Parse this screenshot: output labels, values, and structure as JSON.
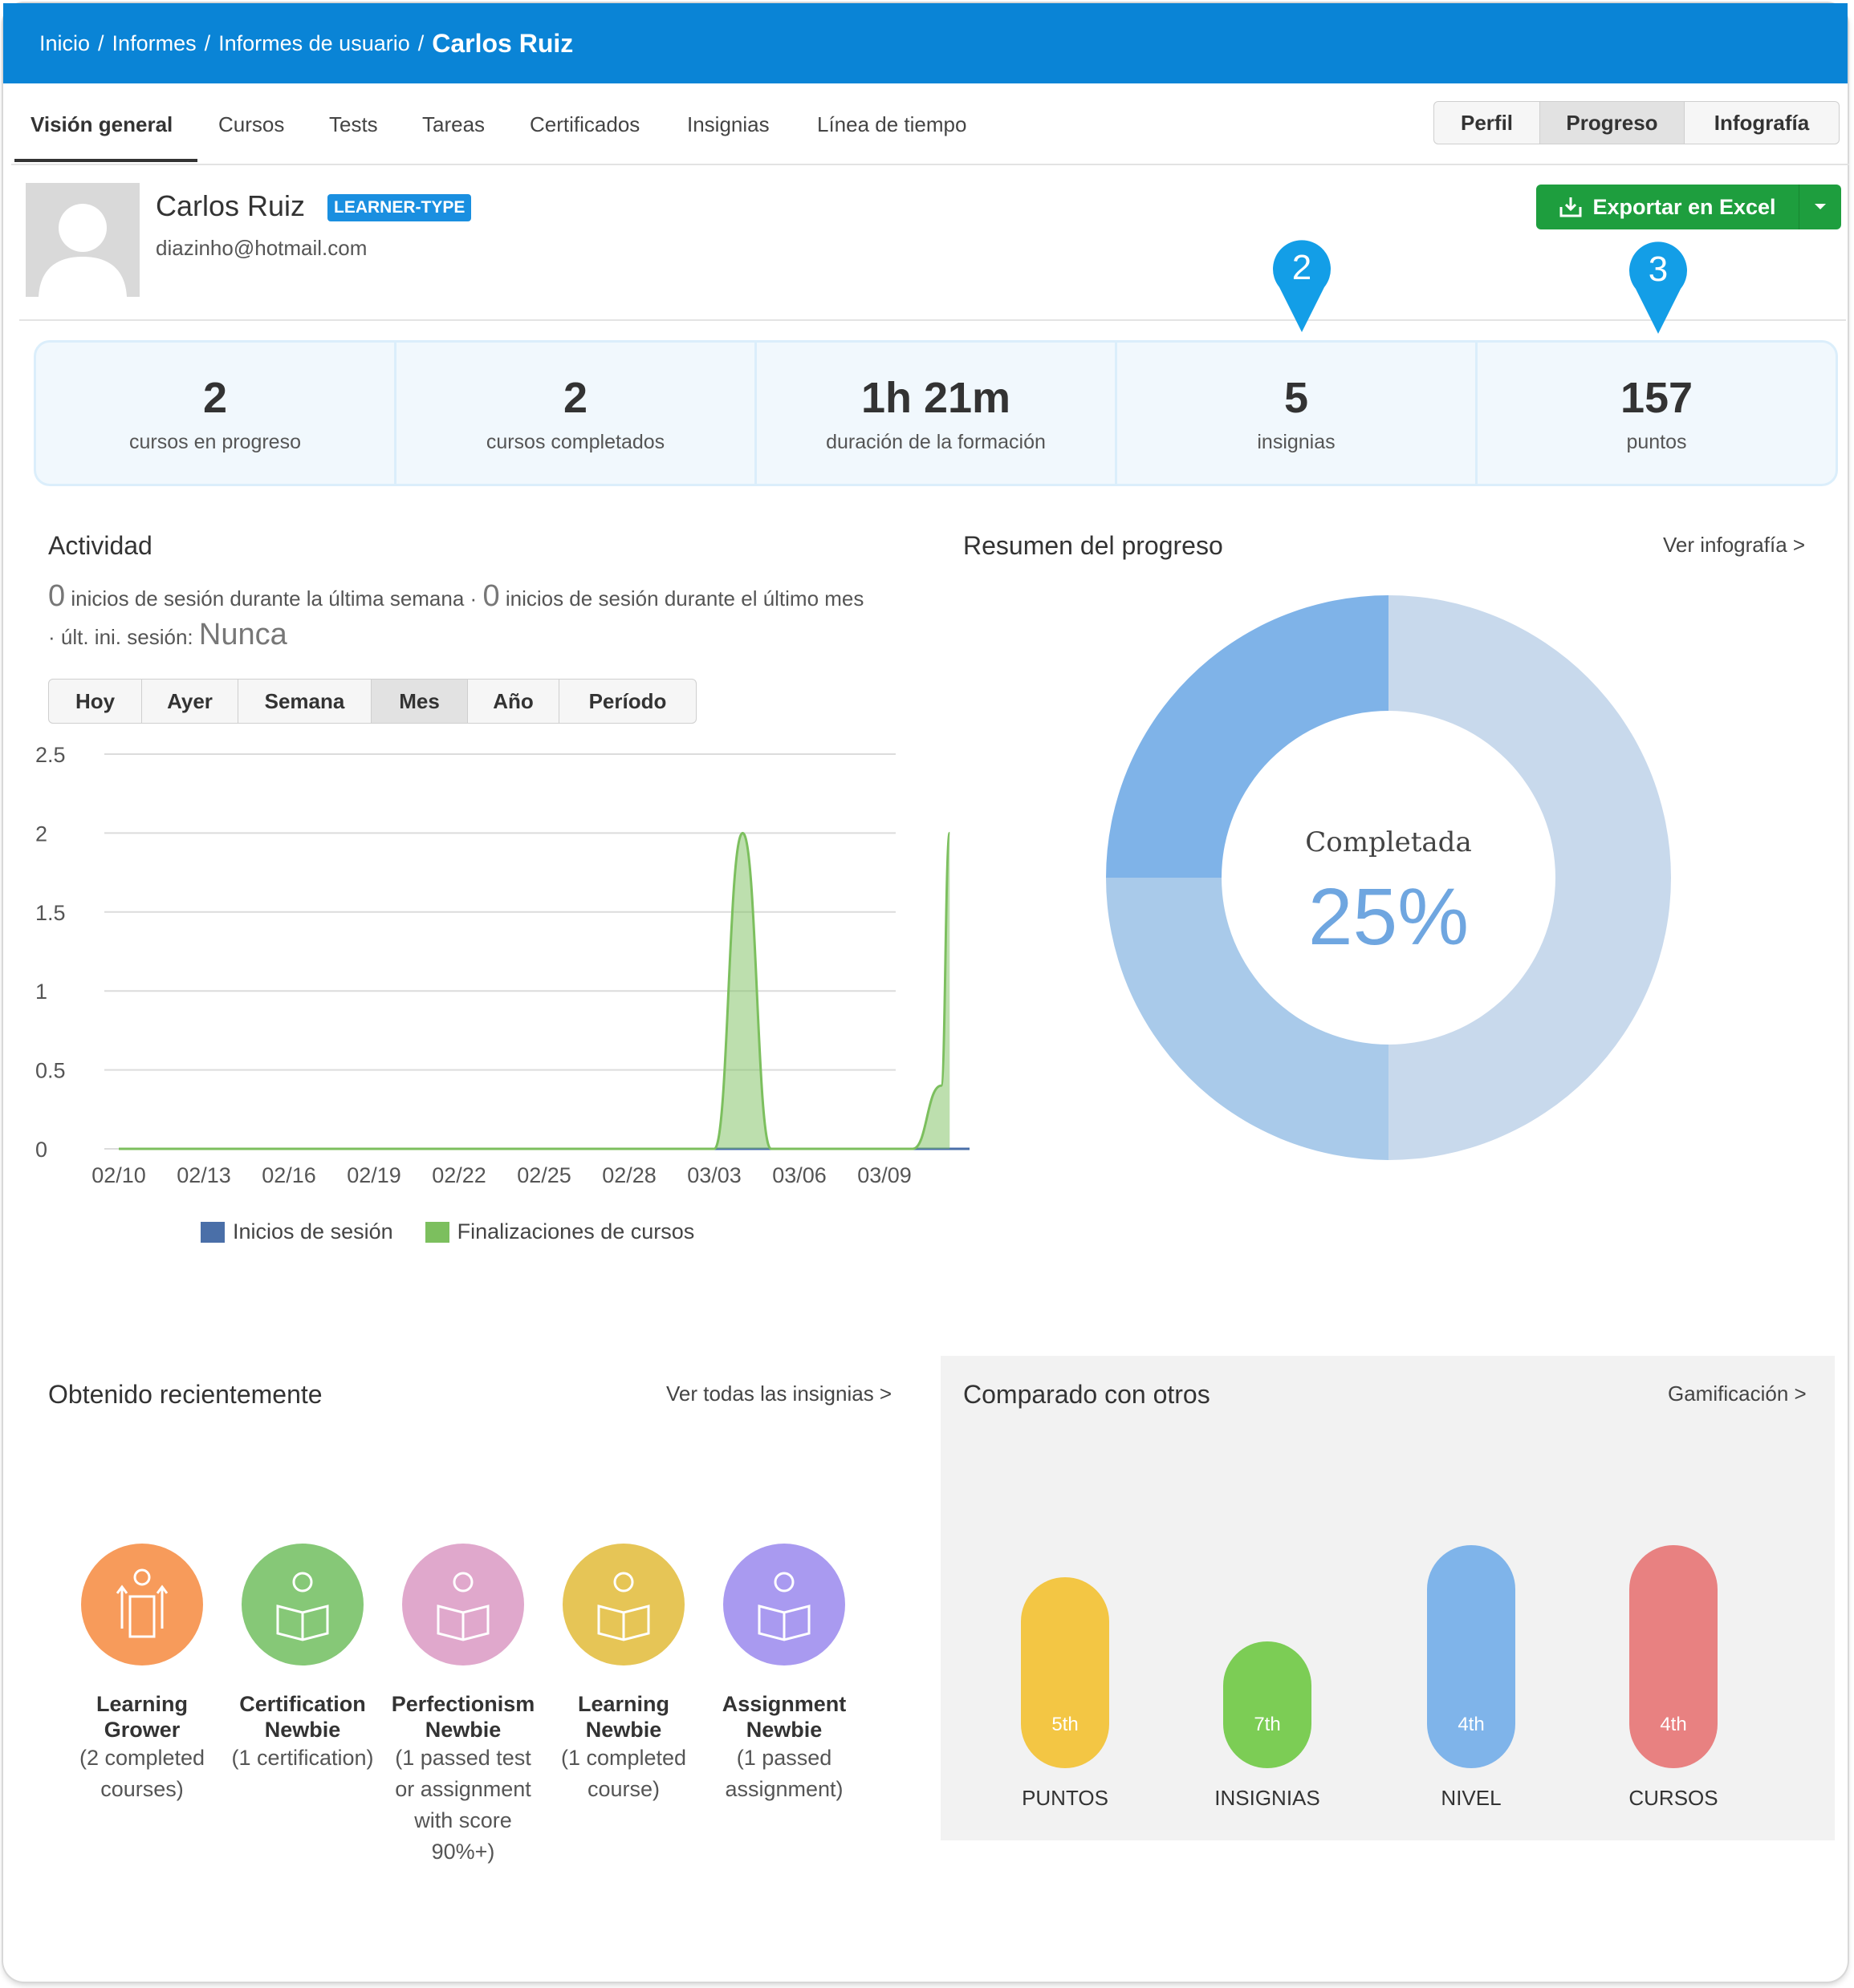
{
  "breadcrumb": {
    "items": [
      "Inicio",
      "Informes",
      "Informes de usuario"
    ],
    "separator": "/",
    "current": "Carlos Ruiz"
  },
  "tabs": [
    "Visión general",
    "Cursos",
    "Tests",
    "Tareas",
    "Certificados",
    "Insignias",
    "Línea de tiempo"
  ],
  "active_tab": "Visión general",
  "view_toggle": {
    "items": [
      "Perfil",
      "Progreso",
      "Infografía"
    ],
    "active": "Progreso"
  },
  "user": {
    "name": "Carlos Ruiz",
    "type_badge": "LEARNER-TYPE",
    "email": "diazinho@hotmail.com"
  },
  "export_button": {
    "label": "Exportar en Excel"
  },
  "markers": [
    "2",
    "3"
  ],
  "stats": [
    {
      "value": "2",
      "label": "cursos en progreso"
    },
    {
      "value": "2",
      "label": "cursos completados"
    },
    {
      "value": "1h 21m",
      "label": "duración de la formación"
    },
    {
      "value": "5",
      "label": "insignias"
    },
    {
      "value": "157",
      "label": "puntos"
    }
  ],
  "activity": {
    "title": "Actividad",
    "week_count": "0",
    "week_text": "inicios de sesión durante la última semana",
    "dot": "·",
    "month_count": "0",
    "month_text": "inicios de sesión durante el último mes",
    "last_login_label": "· últ. ini. sesión:",
    "last_login_value": "Nunca",
    "ranges": [
      "Hoy",
      "Ayer",
      "Semana",
      "Mes",
      "Año",
      "Período"
    ],
    "active_range": "Mes"
  },
  "chart_data": {
    "type": "area",
    "x": [
      "02/10",
      "02/13",
      "02/16",
      "02/19",
      "02/22",
      "02/25",
      "02/28",
      "03/03",
      "03/06",
      "03/09"
    ],
    "ylim": [
      0,
      2.5
    ],
    "yticks": [
      "2.5",
      "2",
      "1.5",
      "1",
      "0.5",
      "0"
    ],
    "series": [
      {
        "name": "Inicios de sesión",
        "color": "#4a6fa8",
        "points": [
          [
            0,
            0
          ],
          [
            30,
            0
          ]
        ]
      },
      {
        "name": "Finalizaciones de cursos",
        "color": "#7cbf5e",
        "points": [
          [
            0,
            0
          ],
          [
            21,
            0
          ],
          [
            22,
            2
          ],
          [
            23,
            0
          ],
          [
            28,
            0
          ],
          [
            29,
            0.4
          ],
          [
            29.3,
            2
          ]
        ]
      }
    ],
    "grid": true,
    "legend": "bottom"
  },
  "progress": {
    "title": "Resumen del progreso",
    "link": "Ver infografía >",
    "center_label": "Completada",
    "center_value": "25%",
    "donut": {
      "type": "pie",
      "values": [
        25,
        25,
        50
      ],
      "colors": [
        "#7fb3e8",
        "#a9caea",
        "#c8d9ec"
      ]
    }
  },
  "recent": {
    "title": "Obtenido recientemente",
    "link": "Ver todas las insignias >",
    "badges": [
      {
        "name": "Learning Grower",
        "desc": "(2 completed courses)",
        "color": "#f79b5b",
        "icon": "learning-grower-icon"
      },
      {
        "name": "Certification Newbie",
        "desc": "(1 certification)",
        "color": "#86c877",
        "icon": "certification-newbie-icon"
      },
      {
        "name": "Perfectionism Newbie",
        "desc": "(1 passed test or assignment with score 90%+)",
        "color": "#e0a8cc",
        "icon": "perfectionism-newbie-icon"
      },
      {
        "name": "Learning Newbie",
        "desc": "(1 completed course)",
        "color": "#e6c556",
        "icon": "learning-newbie-icon"
      },
      {
        "name": "Assignment Newbie",
        "desc": "(1 passed assignment)",
        "color": "#a99af0",
        "icon": "assignment-newbie-icon"
      }
    ]
  },
  "compare": {
    "title": "Comparado con otros",
    "link": "Gamificación >",
    "items": [
      {
        "label": "PUNTOS",
        "rank": "5th",
        "color": "#f3c644"
      },
      {
        "label": "INSIGNIAS",
        "rank": "7th",
        "color": "#7ccd55"
      },
      {
        "label": "NIVEL",
        "rank": "4th",
        "color": "#7fb4ea"
      },
      {
        "label": "CURSOS",
        "rank": "4th",
        "color": "#e88181"
      }
    ]
  }
}
